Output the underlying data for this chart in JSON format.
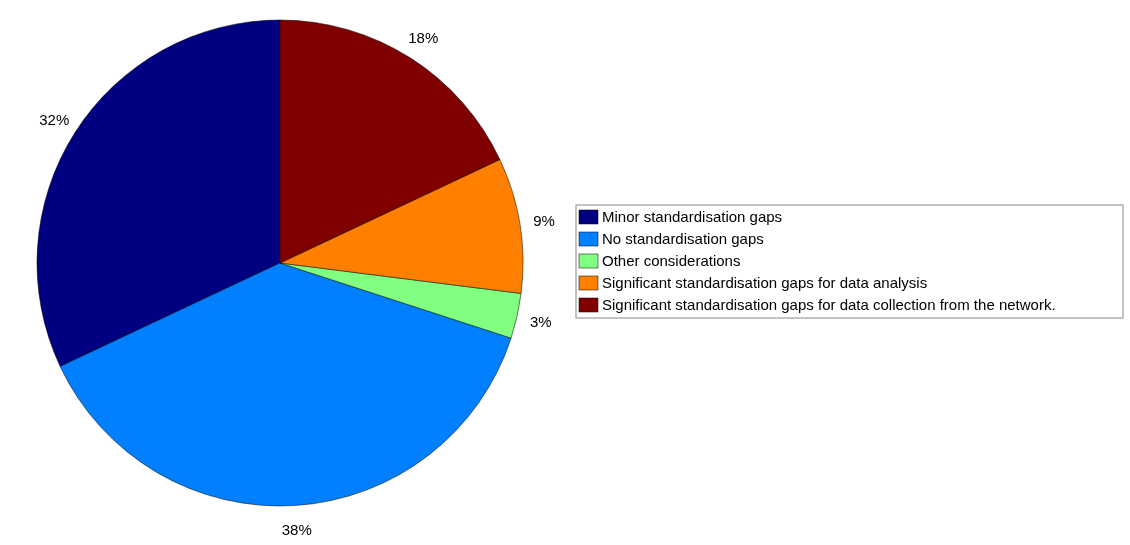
{
  "chart_data": {
    "type": "pie",
    "categories": [
      "Minor standardisation gaps",
      "No standardisation gaps",
      "Other considerations",
      "Significant standardisation gaps for data analysis",
      "Significant standardisation gaps for data collection from the network."
    ],
    "values": [
      32,
      38,
      3,
      9,
      18
    ],
    "colors": [
      "#000080",
      "#0080ff",
      "#80ff80",
      "#ff8000",
      "#800000"
    ],
    "value_labels": [
      "32%",
      "38%",
      "3%",
      "9%",
      "18%"
    ],
    "legend": "right"
  }
}
